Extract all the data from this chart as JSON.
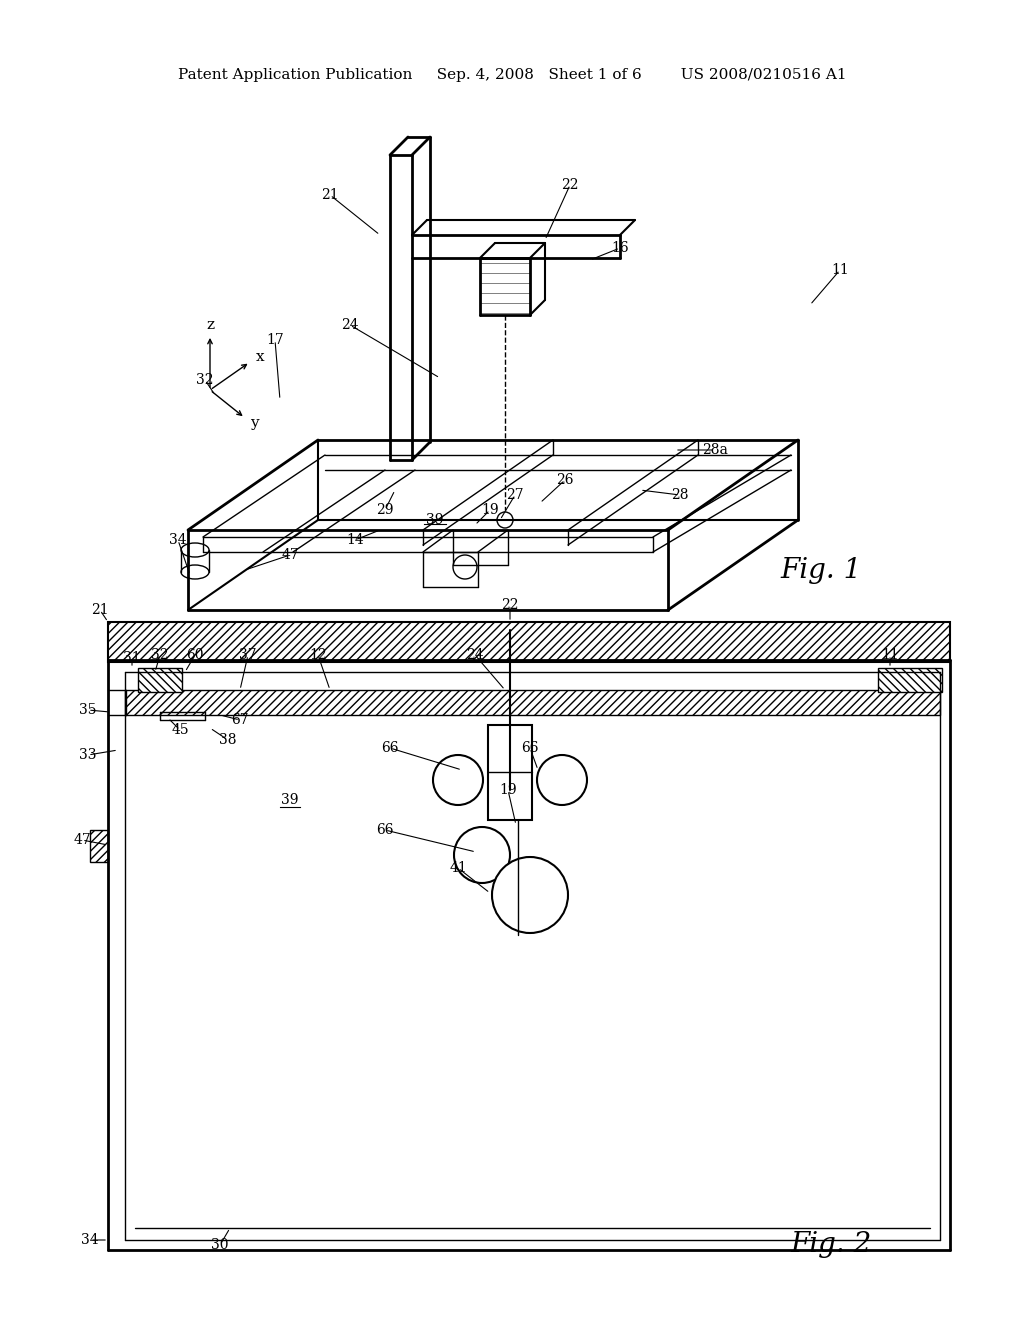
{
  "bg_color": "#ffffff",
  "line_color": "#000000",
  "header": "Patent Application Publication     Sep. 4, 2008   Sheet 1 of 6        US 2008/0210516 A1",
  "fig1_label": "Fig. 1",
  "fig2_label": "Fig. 2"
}
